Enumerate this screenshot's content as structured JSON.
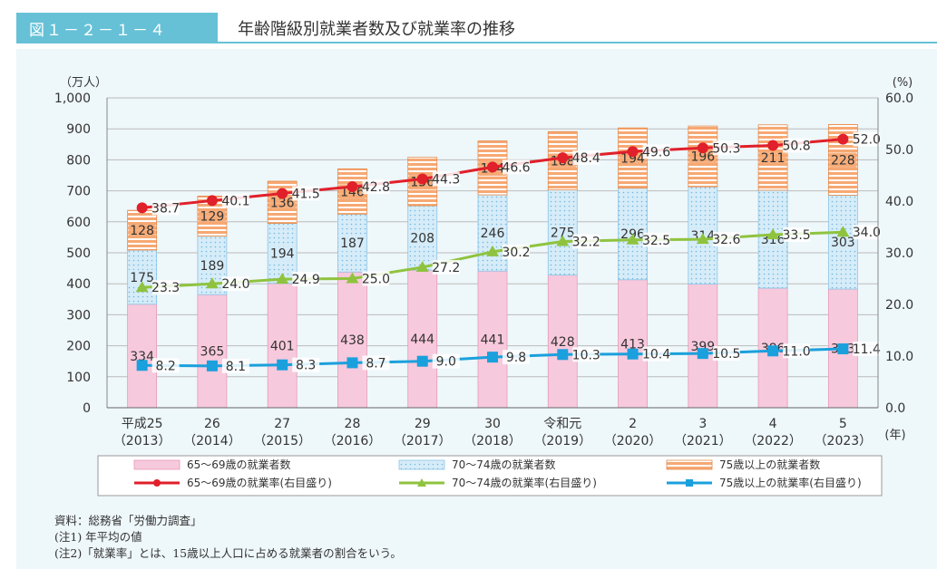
{
  "header": {
    "figure_number": "図１－２－１－４",
    "title": "年齢階級別就業者数及び就業率の推移"
  },
  "notes": {
    "source": "資料：総務省「労働力調査」",
    "note1": "(注1) 年平均の値",
    "note2": "(注2)「就業率」とは、15歳以上人口に占める就業者の割合をいう。"
  },
  "colors": {
    "pink": "#f7c9dc",
    "pink_edge": "#e79ab9",
    "blue": "#d6ecf8",
    "blue_dot": "#6fb6e0",
    "orange": "#f6a873",
    "orange_stripe": "#ffffff",
    "red": "#e0202a",
    "green": "#8fc33f",
    "cyan": "#1aa0dc",
    "grid": "#bbbbbb"
  },
  "chart_data": {
    "type": "bar",
    "categories": [
      [
        "平成25",
        "（2013）"
      ],
      [
        "26",
        "（2014）"
      ],
      [
        "27",
        "（2015）"
      ],
      [
        "28",
        "（2016）"
      ],
      [
        "29",
        "（2017）"
      ],
      [
        "30",
        "（2018）"
      ],
      [
        "令和元",
        "（2019）"
      ],
      [
        "2",
        "（2020）"
      ],
      [
        "3",
        "（2021）"
      ],
      [
        "4",
        "（2022）"
      ],
      [
        "5",
        "（2023）"
      ]
    ],
    "x_unit": "(年)",
    "y_left": {
      "unit": "（万人）",
      "ylim": [
        0,
        1000
      ],
      "ticks": [
        "0",
        "100",
        "200",
        "300",
        "400",
        "500",
        "600",
        "700",
        "800",
        "900",
        "1,000"
      ]
    },
    "y_right": {
      "unit": "(%)",
      "ylim": [
        0,
        60
      ],
      "ticks": [
        "0.0",
        "10.0",
        "20.0",
        "30.0",
        "40.0",
        "50.0",
        "60.0"
      ]
    },
    "grid": true,
    "series": [
      {
        "name": "65～69歳の就業者数",
        "kind": "bar",
        "axis": "left",
        "values": [
          334,
          365,
          401,
          438,
          444,
          441,
          428,
          413,
          399,
          386,
          383
        ]
      },
      {
        "name": "70～74歳の就業者数",
        "kind": "bar",
        "axis": "left",
        "values": [
          175,
          189,
          194,
          187,
          208,
          246,
          275,
          296,
          314,
          316,
          303
        ]
      },
      {
        "name": "75歳以上の就業者数",
        "kind": "bar",
        "axis": "left",
        "values": [
          128,
          129,
          136,
          146,
          156,
          174,
          188,
          194,
          196,
          211,
          228
        ]
      },
      {
        "name": "65～69歳の就業率(右目盛り)",
        "kind": "line",
        "axis": "right",
        "values": [
          38.7,
          40.1,
          41.5,
          42.8,
          44.3,
          46.6,
          48.4,
          49.6,
          50.3,
          50.8,
          52.0
        ]
      },
      {
        "name": "70～74歳の就業率(右目盛り)",
        "kind": "line",
        "axis": "right",
        "values": [
          23.3,
          24.0,
          24.9,
          25.0,
          27.2,
          30.2,
          32.2,
          32.5,
          32.6,
          33.5,
          34.0
        ]
      },
      {
        "name": "75歳以上の就業率(右目盛り)",
        "kind": "line",
        "axis": "right",
        "values": [
          8.2,
          8.1,
          8.3,
          8.7,
          9.0,
          9.8,
          10.3,
          10.4,
          10.5,
          11.0,
          11.4
        ]
      }
    ],
    "legend_position": "bottom"
  }
}
